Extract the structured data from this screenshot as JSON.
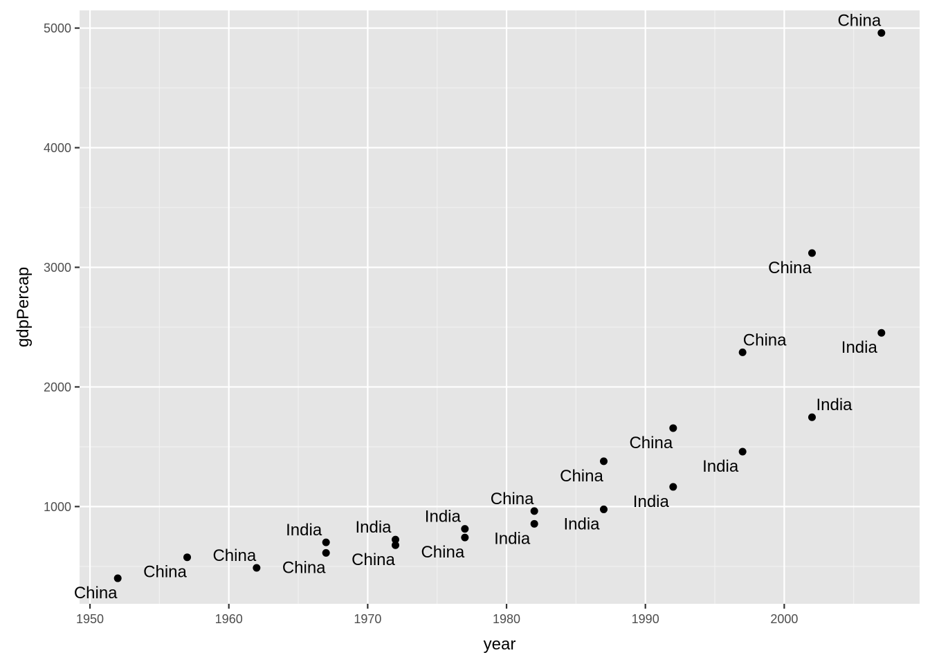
{
  "chart_data": {
    "type": "scatter",
    "title": "",
    "xlabel": "year",
    "ylabel": "gdpPercap",
    "xlim": [
      1949.25,
      2009.75
    ],
    "ylim": [
      186.8,
      5148
    ],
    "x_ticks": [
      1950,
      1960,
      1970,
      1980,
      1990,
      2000
    ],
    "x_tick_labels": [
      "1950",
      "1960",
      "1970",
      "1980",
      "1990",
      "2000"
    ],
    "y_ticks": [
      1000,
      2000,
      3000,
      4000,
      5000
    ],
    "y_tick_labels": [
      "1000",
      "2000",
      "3000",
      "4000",
      "5000"
    ],
    "grid": true,
    "legend": "none",
    "colors": {
      "panel_background": "#e5e5e5",
      "grid_major": "#ffffff",
      "grid_minor": "#f2f2f2",
      "point": "#000000",
      "tick_text": "#4d4d4d",
      "axis_title_text": "#000000"
    },
    "points": [
      {
        "country": "China",
        "x": 1952,
        "y": 400.4,
        "label_pos": "below-left"
      },
      {
        "country": "China",
        "x": 1957,
        "y": 576.0,
        "label_pos": "below-left"
      },
      {
        "country": "China",
        "x": 1962,
        "y": 487.7,
        "label_pos": "above-left"
      },
      {
        "country": "China",
        "x": 1967,
        "y": 612.7,
        "label_pos": "below-left"
      },
      {
        "country": "China",
        "x": 1972,
        "y": 676.9,
        "label_pos": "below-left"
      },
      {
        "country": "China",
        "x": 1977,
        "y": 741.2,
        "label_pos": "below-left"
      },
      {
        "country": "China",
        "x": 1982,
        "y": 962.4,
        "label_pos": "above-left"
      },
      {
        "country": "China",
        "x": 1987,
        "y": 1378.9,
        "label_pos": "below-left"
      },
      {
        "country": "China",
        "x": 1992,
        "y": 1655.8,
        "label_pos": "below-left"
      },
      {
        "country": "China",
        "x": 1997,
        "y": 2289.2,
        "label_pos": "above-right"
      },
      {
        "country": "China",
        "x": 2002,
        "y": 3119.3,
        "label_pos": "below-left"
      },
      {
        "country": "China",
        "x": 2007,
        "y": 4959.1,
        "label_pos": "above-left"
      },
      {
        "country": "India",
        "x": 1967,
        "y": 700.8,
        "label_pos": "above-left"
      },
      {
        "country": "India",
        "x": 1972,
        "y": 724.0,
        "label_pos": "above-left"
      },
      {
        "country": "India",
        "x": 1977,
        "y": 813.3,
        "label_pos": "above-left"
      },
      {
        "country": "India",
        "x": 1982,
        "y": 855.7,
        "label_pos": "below-left"
      },
      {
        "country": "India",
        "x": 1987,
        "y": 976.5,
        "label_pos": "below-left"
      },
      {
        "country": "India",
        "x": 1992,
        "y": 1164.4,
        "label_pos": "below-left"
      },
      {
        "country": "India",
        "x": 1997,
        "y": 1458.8,
        "label_pos": "below-left"
      },
      {
        "country": "India",
        "x": 2002,
        "y": 1746.8,
        "label_pos": "above-right"
      },
      {
        "country": "India",
        "x": 2007,
        "y": 2452.2,
        "label_pos": "below-left"
      }
    ]
  }
}
